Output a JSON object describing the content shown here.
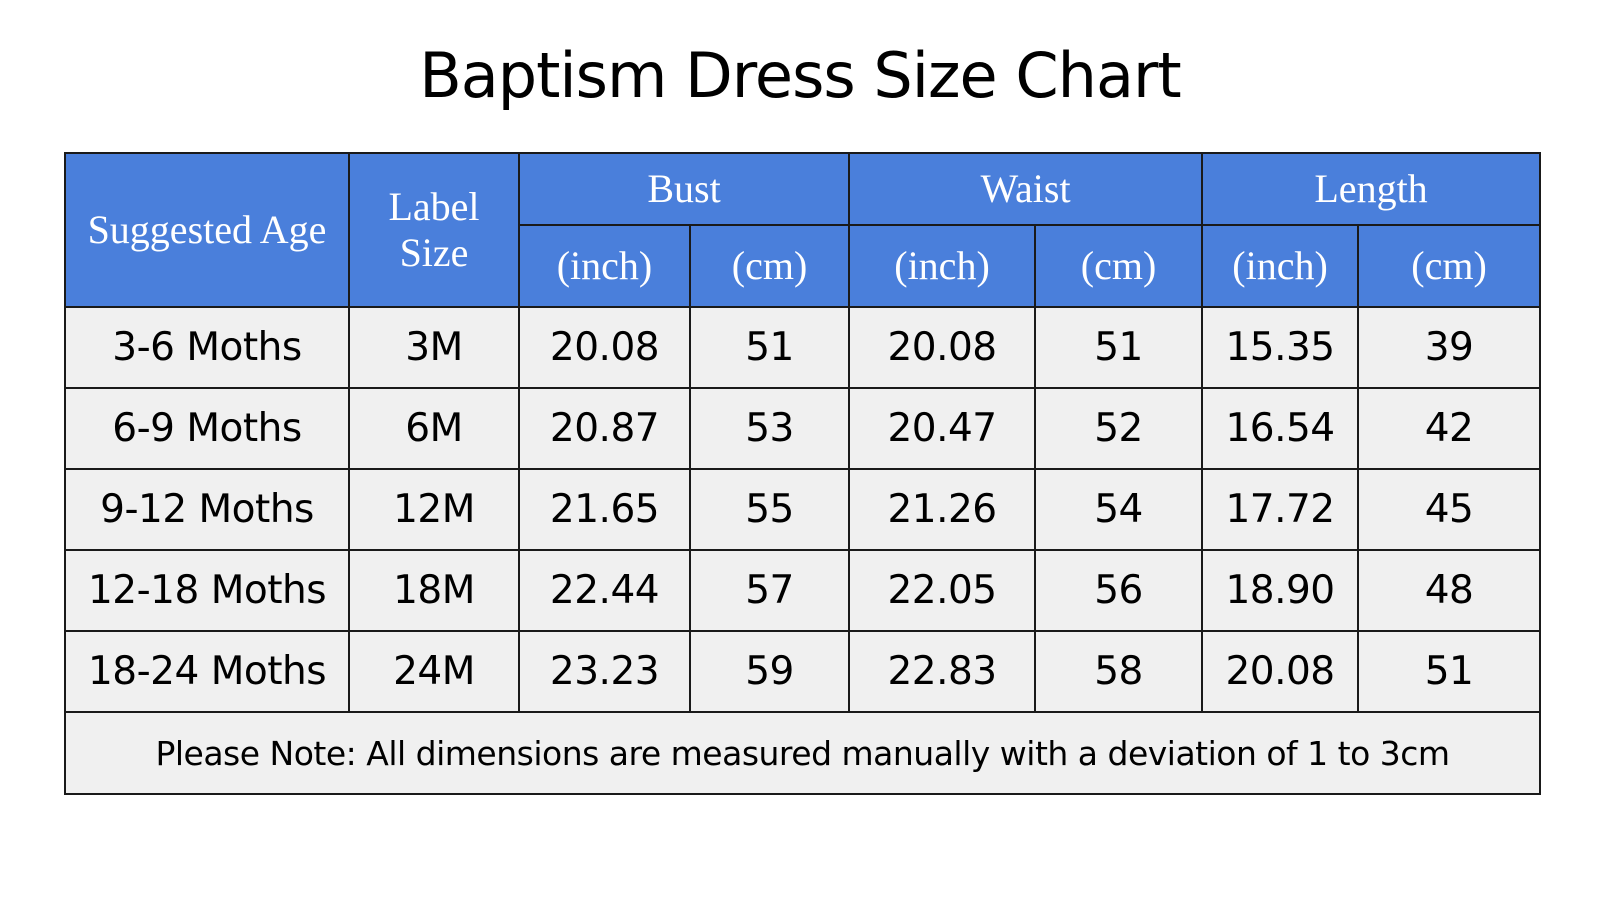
{
  "title": "Baptism Dress Size Chart",
  "header": {
    "suggested_age": "Suggested Age",
    "label_size_line1": "Label",
    "label_size_line2": "Size",
    "groups": [
      "Bust",
      "Waist",
      "Length"
    ],
    "units": [
      "(inch)",
      "(cm)",
      "(inch)",
      "(cm)",
      "(inch)",
      "(cm)"
    ]
  },
  "rows": [
    {
      "age": "3-6 Moths",
      "label": "3M",
      "bust_in": "20.08",
      "bust_cm": "51",
      "waist_in": "20.08",
      "waist_cm": "51",
      "length_in": "15.35",
      "length_cm": "39"
    },
    {
      "age": "6-9 Moths",
      "label": "6M",
      "bust_in": "20.87",
      "bust_cm": "53",
      "waist_in": "20.47",
      "waist_cm": "52",
      "length_in": "16.54",
      "length_cm": "42"
    },
    {
      "age": "9-12 Moths",
      "label": "12M",
      "bust_in": "21.65",
      "bust_cm": "55",
      "waist_in": "21.26",
      "waist_cm": "54",
      "length_in": "17.72",
      "length_cm": "45"
    },
    {
      "age": "12-18 Moths",
      "label": "18M",
      "bust_in": "22.44",
      "bust_cm": "57",
      "waist_in": "22.05",
      "waist_cm": "56",
      "length_in": "18.90",
      "length_cm": "48"
    },
    {
      "age": "18-24 Moths",
      "label": "24M",
      "bust_in": "23.23",
      "bust_cm": "59",
      "waist_in": "22.83",
      "waist_cm": "58",
      "length_in": "20.08",
      "length_cm": "51"
    }
  ],
  "note": "Please Note: All dimensions are measured manually with a deviation of 1 to 3cm",
  "colors": {
    "header_bg": "#4a7fdb",
    "header_text": "#ffffff",
    "cell_bg": "#f0f0f0",
    "border": "#1a1a1a"
  }
}
